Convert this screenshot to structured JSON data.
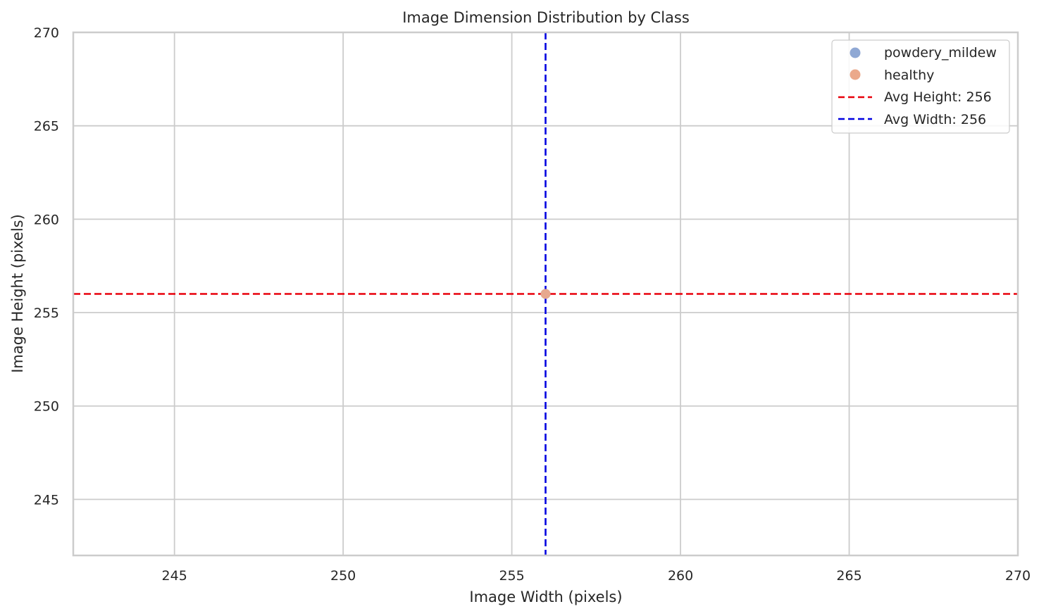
{
  "chart_data": {
    "type": "scatter",
    "title": "Image Dimension Distribution by Class",
    "xlabel": "Image Width (pixels)",
    "ylabel": "Image Height (pixels)",
    "xlim": [
      242,
      270
    ],
    "ylim": [
      242,
      270
    ],
    "xticks": [
      245,
      250,
      255,
      260,
      265,
      270
    ],
    "yticks": [
      245,
      250,
      255,
      260,
      265,
      270
    ],
    "grid": true,
    "legend_position": "top-right",
    "series": [
      {
        "name": "powdery_mildew",
        "color": "#8fa8d4",
        "points": [
          {
            "x": 256,
            "y": 256
          }
        ]
      },
      {
        "name": "healthy",
        "color": "#eba98b",
        "points": [
          {
            "x": 256,
            "y": 256
          }
        ]
      }
    ],
    "reference_lines": [
      {
        "orientation": "horizontal",
        "value": 256,
        "label": "Avg Height: 256",
        "color": "#e8000b",
        "style": "dashed"
      },
      {
        "orientation": "vertical",
        "value": 256,
        "label": "Avg Width: 256",
        "color": "#0000e0",
        "style": "dashed"
      }
    ]
  }
}
